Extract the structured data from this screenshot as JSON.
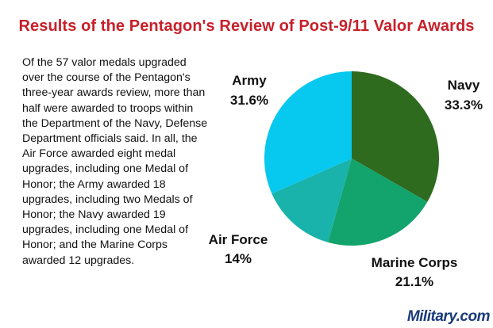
{
  "title": "Results of the Pentagon's Review of Post-9/11 Valor Awards",
  "description": "Of the 57 valor medals upgraded over the course of the Pentagon's three-year awards review, more than half were awarded to troops within the Department of the Navy, Defense Department officials said. In all, the Air Force awarded eight medal upgrades, including one Medal of Honor; the Army awarded 18 upgrades, including two Medals of Honor; the Navy awarded 19 upgrades, including one Medal of Honor; and the Marine Corps awarded 12 upgrades.",
  "logo": "Military.com",
  "chart_data": {
    "type": "pie",
    "title": "Results of the Pentagon's Review of Post-9/11 Valor Awards",
    "slices": [
      {
        "name": "Navy",
        "value": 33.3,
        "label": "33.3%",
        "color": "#2e6b1f"
      },
      {
        "name": "Marine Corps",
        "value": 21.1,
        "label": "21.1%",
        "color": "#13a36c"
      },
      {
        "name": "Air Force",
        "value": 14.0,
        "label": "14%",
        "color": "#1ab3ab"
      },
      {
        "name": "Army",
        "value": 31.6,
        "label": "31.6%",
        "color": "#07c8ee"
      }
    ],
    "start": "top",
    "direction": "clockwise",
    "legend": "none"
  }
}
